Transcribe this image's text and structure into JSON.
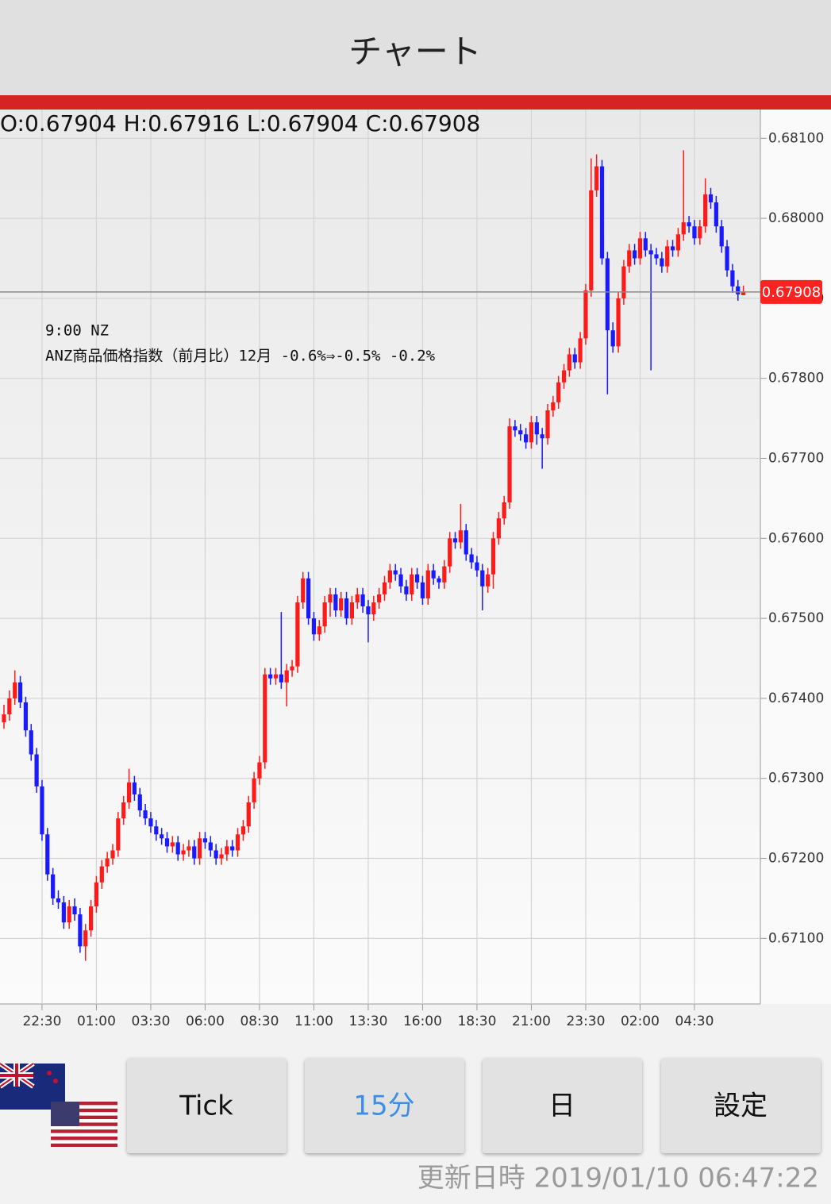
{
  "header": {
    "title": "チャート"
  },
  "chart_data": {
    "type": "candlestick",
    "ohlc_header": "O:0.67904 H:0.67916 L:0.67904 C:0.67908",
    "annotations": [
      "9:00 NZ",
      "ANZ商品価格指数（前月比）12月 -0.6%⇒-0.5% -0.2%"
    ],
    "categories": [
      null,
      null,
      null,
      null,
      null,
      null,
      null,
      "22:30",
      null,
      null,
      null,
      null,
      null,
      null,
      null,
      null,
      null,
      "01:00",
      null,
      null,
      null,
      null,
      null,
      null,
      null,
      null,
      null,
      "03:30",
      null,
      null,
      null,
      null,
      null,
      null,
      null,
      null,
      null,
      "06:00",
      null,
      null,
      null,
      null,
      null,
      null,
      null,
      null,
      null,
      "08:30",
      null,
      null,
      null,
      null,
      null,
      null,
      null,
      null,
      null,
      "11:00",
      null,
      null,
      null,
      null,
      null,
      null,
      null,
      null,
      null,
      "13:30",
      null,
      null,
      null,
      null,
      null,
      null,
      null,
      null,
      null,
      "16:00",
      null,
      null,
      null,
      null,
      null,
      null,
      null,
      null,
      null,
      "18:30",
      null,
      null,
      null,
      null,
      null,
      null,
      null,
      null,
      null,
      "21:00",
      null,
      null,
      null,
      null,
      null,
      null,
      null,
      null,
      null,
      "23:30",
      null,
      null,
      null,
      null,
      null,
      null,
      null,
      null,
      null,
      "02:00",
      null,
      null,
      null,
      null,
      null,
      null,
      null,
      null,
      null,
      "04:30",
      null,
      null,
      null,
      null,
      null,
      null,
      null,
      null,
      null
    ],
    "open": [
      0.6737,
      0.6738,
      0.674,
      0.6742,
      0.67395,
      0.6736,
      0.6733,
      0.6729,
      0.6723,
      0.6718,
      0.6715,
      0.67145,
      0.6712,
      0.6714,
      0.6713,
      0.6709,
      0.6711,
      0.6714,
      0.6717,
      0.6719,
      0.672,
      0.6721,
      0.6725,
      0.6727,
      0.67295,
      0.6728,
      0.6726,
      0.6725,
      0.6724,
      0.6723,
      0.67225,
      0.67215,
      0.6722,
      0.67205,
      0.6721,
      0.67215,
      0.672,
      0.67225,
      0.6722,
      0.6721,
      0.672,
      0.67205,
      0.67215,
      0.6721,
      0.6723,
      0.6724,
      0.6727,
      0.673,
      0.6732,
      0.6743,
      0.67425,
      0.6743,
      0.6742,
      0.67435,
      0.6744,
      0.6752,
      0.6755,
      0.675,
      0.6748,
      0.6749,
      0.6752,
      0.6753,
      0.6751,
      0.67525,
      0.675,
      0.6752,
      0.6753,
      0.67515,
      0.67505,
      0.6752,
      0.6753,
      0.67545,
      0.6756,
      0.67555,
      0.6754,
      0.6753,
      0.67555,
      0.67545,
      0.67525,
      0.6756,
      0.6755,
      0.67545,
      0.67565,
      0.676,
      0.67595,
      0.6761,
      0.6758,
      0.6757,
      0.6756,
      0.6754,
      0.67555,
      0.676,
      0.67625,
      0.67645,
      0.6774,
      0.67735,
      0.6773,
      0.6772,
      0.67745,
      0.6773,
      0.67725,
      0.6776,
      0.6777,
      0.67795,
      0.6781,
      0.6783,
      0.6782,
      0.6785,
      0.6791,
      0.68035,
      0.68065,
      0.6795,
      0.6786,
      0.6784,
      0.679,
      0.6794,
      0.6796,
      0.6795,
      0.67975,
      0.6796,
      0.67955,
      0.6795,
      0.6794,
      0.67965,
      0.6796,
      0.6798,
      0.67995,
      0.6799,
      0.67975,
      0.6799,
      0.6803,
      0.6802,
      0.6799,
      0.67965,
      0.67935,
      0.67915,
      0.67904
    ],
    "high": [
      0.67392,
      0.6741,
      0.67435,
      0.67428,
      0.67402,
      0.67368,
      0.67338,
      0.67298,
      0.67238,
      0.67188,
      0.6716,
      0.67153,
      0.67148,
      0.6715,
      0.67138,
      0.67118,
      0.67148,
      0.67178,
      0.67198,
      0.67208,
      0.67218,
      0.67258,
      0.67278,
      0.67312,
      0.67303,
      0.67288,
      0.67268,
      0.67258,
      0.67248,
      0.67238,
      0.67233,
      0.67228,
      0.67228,
      0.67218,
      0.67223,
      0.67223,
      0.67233,
      0.67233,
      0.67228,
      0.67218,
      0.67213,
      0.67223,
      0.67223,
      0.67238,
      0.67248,
      0.67278,
      0.67308,
      0.67328,
      0.67438,
      0.67438,
      0.67438,
      0.67508,
      0.67443,
      0.67448,
      0.67528,
      0.67558,
      0.67558,
      0.67508,
      0.67498,
      0.67528,
      0.67538,
      0.67538,
      0.67533,
      0.67533,
      0.67528,
      0.67538,
      0.67538,
      0.67523,
      0.67528,
      0.67538,
      0.67553,
      0.67568,
      0.67568,
      0.67563,
      0.67548,
      0.67563,
      0.67563,
      0.67553,
      0.67568,
      0.67568,
      0.67553,
      0.67573,
      0.67608,
      0.67608,
      0.67643,
      0.67618,
      0.67588,
      0.67578,
      0.67568,
      0.67563,
      0.67608,
      0.67633,
      0.67653,
      0.6775,
      0.67748,
      0.67743,
      0.67738,
      0.67753,
      0.67753,
      0.67738,
      0.67768,
      0.67778,
      0.67803,
      0.67818,
      0.67838,
      0.67838,
      0.67858,
      0.67918,
      0.68075,
      0.6808,
      0.68073,
      0.67958,
      0.6787,
      0.67908,
      0.67948,
      0.67968,
      0.67968,
      0.67983,
      0.67983,
      0.67968,
      0.67963,
      0.67958,
      0.67973,
      0.67973,
      0.67988,
      0.68085,
      0.68003,
      0.67998,
      0.67998,
      0.6805,
      0.68038,
      0.68028,
      0.67998,
      0.67973,
      0.67943,
      0.67923,
      0.67916
    ],
    "low": [
      0.67362,
      0.67372,
      0.67392,
      0.67388,
      0.67352,
      0.67322,
      0.67282,
      0.67222,
      0.67172,
      0.67142,
      0.67137,
      0.67112,
      0.67112,
      0.67122,
      0.67082,
      0.67072,
      0.67102,
      0.67132,
      0.67162,
      0.67182,
      0.67192,
      0.67202,
      0.67242,
      0.67262,
      0.67272,
      0.67252,
      0.67242,
      0.67232,
      0.67222,
      0.67217,
      0.67207,
      0.67207,
      0.67197,
      0.67197,
      0.67202,
      0.67192,
      0.67192,
      0.67212,
      0.67202,
      0.67192,
      0.67192,
      0.67197,
      0.67202,
      0.67202,
      0.67222,
      0.67232,
      0.67262,
      0.67292,
      0.67312,
      0.67417,
      0.67417,
      0.67412,
      0.6739,
      0.67427,
      0.67432,
      0.67512,
      0.67492,
      0.67472,
      0.67472,
      0.67482,
      0.67502,
      0.67502,
      0.67502,
      0.67492,
      0.67492,
      0.67512,
      0.67507,
      0.6747,
      0.67497,
      0.67512,
      0.67522,
      0.67537,
      0.67547,
      0.67532,
      0.67522,
      0.67522,
      0.67537,
      0.67517,
      0.67517,
      0.67542,
      0.67537,
      0.67537,
      0.67557,
      0.67587,
      0.67587,
      0.67572,
      0.67562,
      0.67552,
      0.6751,
      0.67532,
      0.67537,
      0.67592,
      0.67617,
      0.67637,
      0.67727,
      0.67722,
      0.67712,
      0.67712,
      0.67717,
      0.67687,
      0.67717,
      0.67752,
      0.67762,
      0.67787,
      0.67802,
      0.67812,
      0.67812,
      0.67842,
      0.67902,
      0.68027,
      0.67942,
      0.6778,
      0.67832,
      0.67832,
      0.67892,
      0.67932,
      0.67942,
      0.67942,
      0.67952,
      0.6781,
      0.67942,
      0.67932,
      0.67932,
      0.67952,
      0.67952,
      0.67972,
      0.67982,
      0.67967,
      0.67967,
      0.67982,
      0.68012,
      0.67982,
      0.67957,
      0.67927,
      0.67907,
      0.67897,
      0.67904
    ],
    "close": [
      0.6738,
      0.674,
      0.6742,
      0.67395,
      0.6736,
      0.6733,
      0.6729,
      0.6723,
      0.6718,
      0.6715,
      0.67145,
      0.6712,
      0.6714,
      0.6713,
      0.6709,
      0.6711,
      0.6714,
      0.6717,
      0.6719,
      0.672,
      0.6721,
      0.6725,
      0.6727,
      0.67295,
      0.6728,
      0.6726,
      0.6725,
      0.6724,
      0.6723,
      0.67225,
      0.67215,
      0.6722,
      0.67205,
      0.6721,
      0.67215,
      0.672,
      0.67225,
      0.6722,
      0.6721,
      0.672,
      0.67205,
      0.67215,
      0.6721,
      0.6723,
      0.6724,
      0.6727,
      0.673,
      0.6732,
      0.6743,
      0.67425,
      0.6743,
      0.6742,
      0.67435,
      0.6744,
      0.6752,
      0.6755,
      0.675,
      0.6748,
      0.6749,
      0.6752,
      0.6753,
      0.6751,
      0.67525,
      0.675,
      0.6752,
      0.6753,
      0.67515,
      0.67505,
      0.6752,
      0.6753,
      0.67545,
      0.6756,
      0.67555,
      0.6754,
      0.6753,
      0.67555,
      0.67545,
      0.67525,
      0.6756,
      0.6755,
      0.67545,
      0.67565,
      0.676,
      0.67595,
      0.6761,
      0.6758,
      0.6757,
      0.6756,
      0.6754,
      0.67555,
      0.676,
      0.67625,
      0.67645,
      0.6774,
      0.67735,
      0.6773,
      0.6772,
      0.67745,
      0.6773,
      0.67725,
      0.6776,
      0.6777,
      0.67795,
      0.6781,
      0.6783,
      0.6782,
      0.6785,
      0.6791,
      0.68035,
      0.68065,
      0.6795,
      0.6786,
      0.6784,
      0.679,
      0.6794,
      0.6796,
      0.6795,
      0.67975,
      0.6796,
      0.67955,
      0.6795,
      0.6794,
      0.67965,
      0.6796,
      0.6798,
      0.67995,
      0.6799,
      0.67975,
      0.6799,
      0.6803,
      0.6802,
      0.6799,
      0.67965,
      0.67935,
      0.67915,
      0.67905,
      0.67908
    ],
    "up_color": "#ff1a1a",
    "down_color": "#1a1aff",
    "price_line_color": "#ff2020",
    "ylim": [
      0.67018,
      0.68136
    ],
    "yticks": [
      {
        "value": 0.671,
        "label": "0.67100"
      },
      {
        "value": 0.672,
        "label": "0.67200"
      },
      {
        "value": 0.673,
        "label": "0.67300"
      },
      {
        "value": 0.674,
        "label": "0.67400"
      },
      {
        "value": 0.675,
        "label": "0.67500"
      },
      {
        "value": 0.676,
        "label": "0.67600"
      },
      {
        "value": 0.677,
        "label": "0.67700"
      },
      {
        "value": 0.678,
        "label": "0.67800"
      },
      {
        "value": 0.679,
        "label": "0.67900"
      },
      {
        "value": 0.68,
        "label": "0.68000"
      },
      {
        "value": 0.681,
        "label": "0.68100"
      }
    ],
    "grid": true
  },
  "buttons": [
    {
      "label": "Tick",
      "selected": false
    },
    {
      "label": "15分",
      "selected": true
    },
    {
      "label": "日",
      "selected": false
    },
    {
      "label": "設定",
      "selected": false
    }
  ],
  "footer": "更新日時 2019/01/10 06:47:22"
}
